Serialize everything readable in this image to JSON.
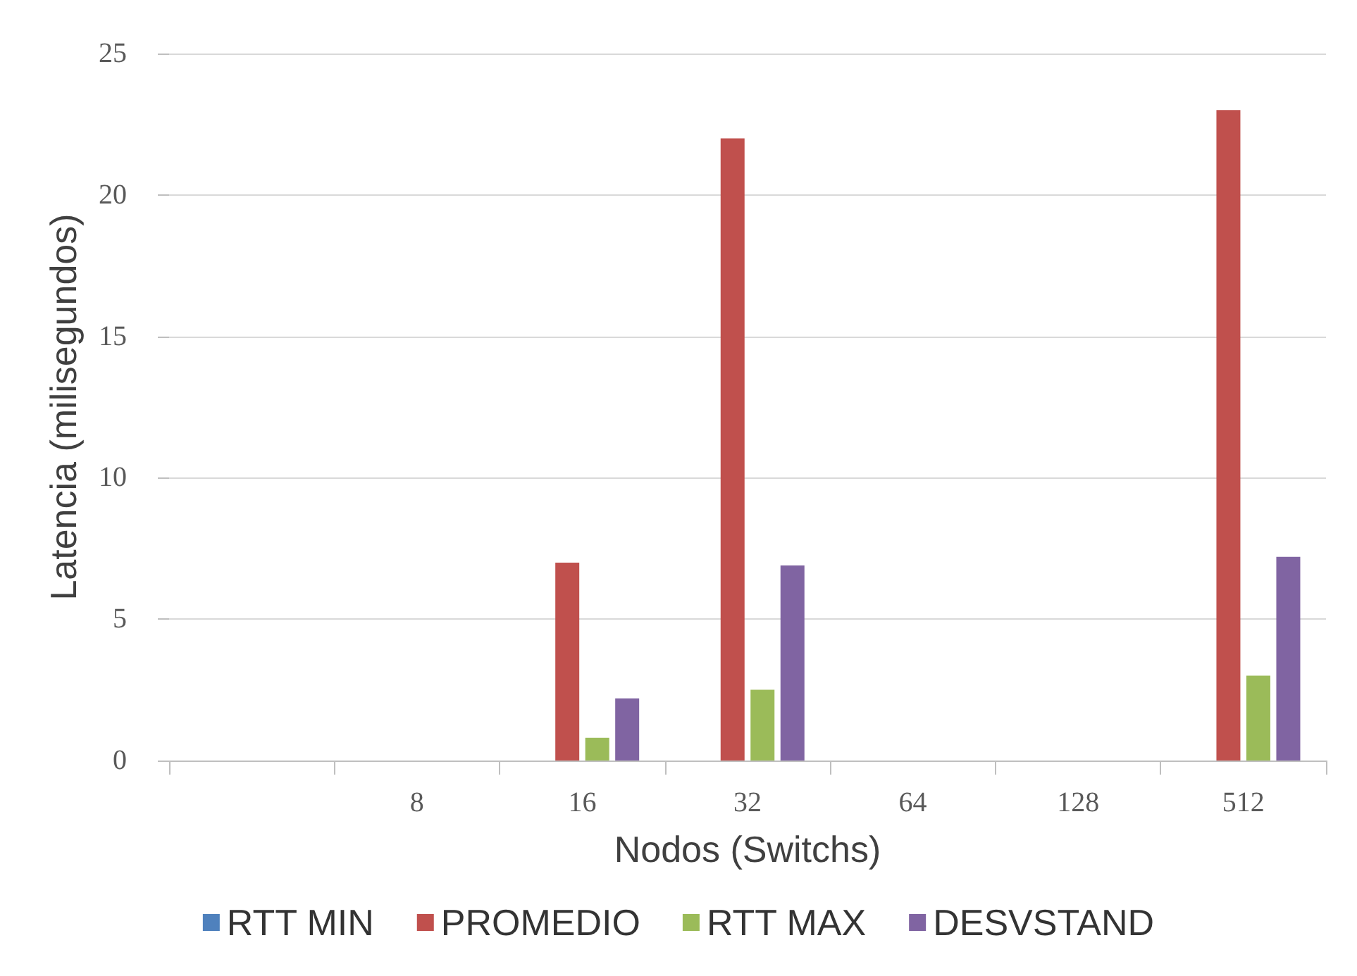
{
  "chart_data": {
    "type": "bar",
    "xlabel": "Nodos (Switchs)",
    "ylabel": "Latencia (milisegundos)",
    "categories": [
      null,
      "8",
      "16",
      "32",
      "64",
      "128",
      "512"
    ],
    "series": [
      {
        "name": "RTT MIN",
        "color": "#4f81bd",
        "values": [
          0,
          0,
          0,
          0,
          0,
          0,
          0
        ]
      },
      {
        "name": "PROMEDIO",
        "color": "#c0504d",
        "values": [
          0,
          0,
          7,
          22,
          0,
          0,
          23
        ]
      },
      {
        "name": "RTT MAX",
        "color": "#9bbb59",
        "values": [
          0,
          0,
          0.8,
          2.5,
          0,
          0,
          3
        ]
      },
      {
        "name": "DESVSTAND",
        "color": "#8064a2",
        "values": [
          0,
          0,
          2.2,
          6.9,
          0,
          0,
          7.2
        ]
      }
    ],
    "ylim": [
      0,
      25
    ],
    "yticks": [
      0,
      5,
      10,
      15,
      20,
      25
    ],
    "grid": "y",
    "legend": "bottom"
  }
}
